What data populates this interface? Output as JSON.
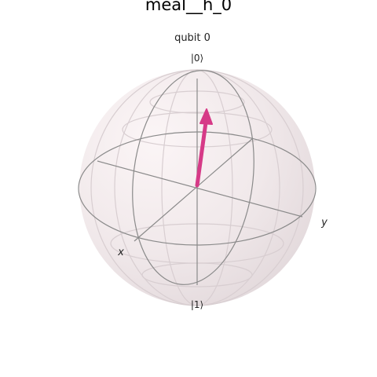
{
  "title": "meal__h_0",
  "subtitle": "qubit 0",
  "labels": {
    "ket0": "|0⟩",
    "ket1": "|1⟩",
    "x_axis": "x",
    "y_axis": "y"
  },
  "colors": {
    "vector": "#d63a87",
    "sphere_fill": "#efe6e8",
    "wire": "#8a8a8a",
    "grid": "#dcd4d6"
  },
  "state": {
    "qubit": 0,
    "theta_deg": 12,
    "phi_deg": 90
  }
}
